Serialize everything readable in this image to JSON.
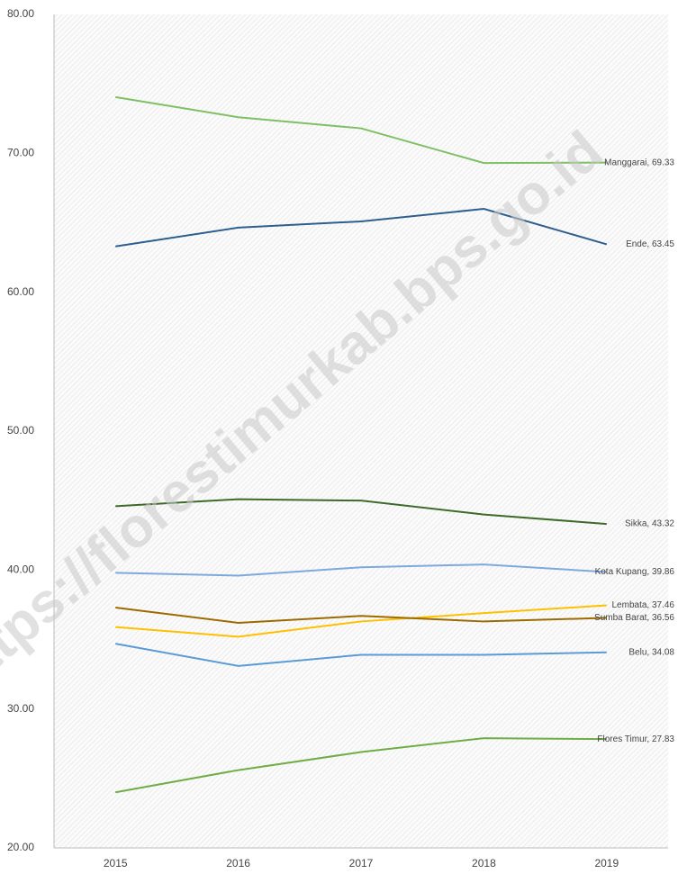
{
  "chart_data": {
    "type": "line",
    "watermark": "https://florestimurkab.bps.go.id",
    "categories": [
      "2015",
      "2016",
      "2017",
      "2018",
      "2019"
    ],
    "ylim": [
      20,
      80
    ],
    "yticks": [
      {
        "value": 20,
        "label": "20.00"
      },
      {
        "value": 30,
        "label": "30.00"
      },
      {
        "value": 40,
        "label": "40.00"
      },
      {
        "value": 50,
        "label": "50.00"
      },
      {
        "value": 60,
        "label": "60.00"
      },
      {
        "value": 70,
        "label": "70.00"
      },
      {
        "value": 80,
        "label": "80.00"
      }
    ],
    "series": [
      {
        "name": "Manggarai",
        "color": "#7fbf66",
        "values": [
          74.05,
          72.6,
          71.8,
          69.3,
          69.33
        ],
        "value_labels": [
          null,
          null,
          null,
          null,
          "Manggarai,  69.33"
        ]
      },
      {
        "name": "Ende",
        "color": "#2e5f8f",
        "values": [
          63.3,
          64.65,
          65.1,
          66.0,
          63.45
        ],
        "value_labels": [
          null,
          null,
          null,
          null,
          "Ende,  63.45"
        ]
      },
      {
        "name": "Sikka",
        "color": "#3d6b2a",
        "values": [
          44.6,
          45.1,
          45.0,
          44.0,
          43.32
        ],
        "value_labels": [
          null,
          null,
          null,
          null,
          "Sikka,  43.32"
        ]
      },
      {
        "name": "Kota Kupang",
        "color": "#7ea9dd",
        "values": [
          39.8,
          39.6,
          40.2,
          40.4,
          39.86
        ],
        "value_labels": [
          null,
          null,
          null,
          null,
          "Kota Kupang,  39.86"
        ]
      },
      {
        "name": "Lembata",
        "color": "#ffc000",
        "values": [
          35.9,
          35.2,
          36.3,
          36.9,
          37.46
        ],
        "value_labels": [
          null,
          null,
          null,
          null,
          "Lembata,  37.46"
        ]
      },
      {
        "name": "Sumba Barat",
        "color": "#9c6b00",
        "values": [
          37.3,
          36.2,
          36.7,
          36.3,
          36.56
        ],
        "value_labels": [
          null,
          null,
          null,
          null,
          "Sumba Barat,  36.56"
        ]
      },
      {
        "name": "Belu",
        "color": "#5b9bd5",
        "values": [
          34.7,
          33.1,
          33.9,
          33.9,
          34.08
        ],
        "value_labels": [
          null,
          null,
          null,
          null,
          "Belu,  34.08"
        ]
      },
      {
        "name": "Flores Timur",
        "color": "#70ad47",
        "values": [
          24.0,
          25.6,
          26.9,
          27.9,
          27.83
        ],
        "value_labels": [
          null,
          null,
          null,
          null,
          "Flores Timur,  27.83"
        ]
      }
    ]
  }
}
